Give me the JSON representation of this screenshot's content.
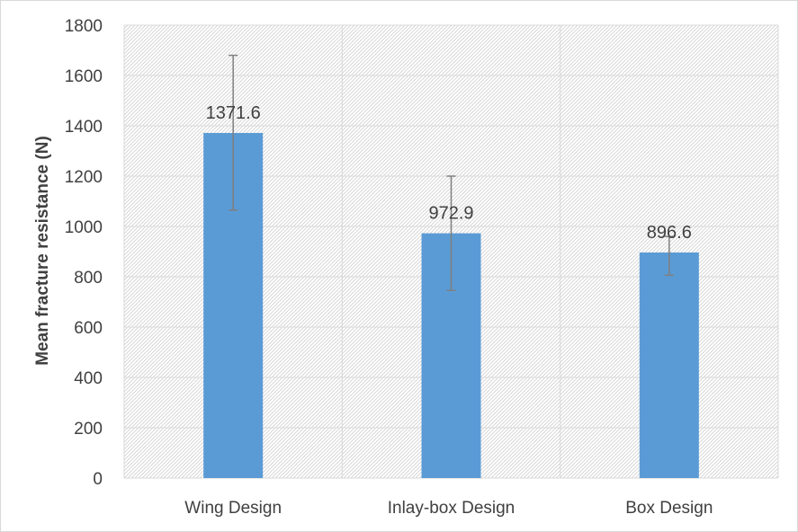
{
  "chart_data": {
    "type": "bar",
    "categories": [
      "Wing Design",
      "Inlay-box Design",
      "Box Design"
    ],
    "values": [
      1371.6,
      972.9,
      896.6
    ],
    "data_labels": [
      "1371.6",
      "972.9",
      "896.6"
    ],
    "error_bars": [
      {
        "low": 1065,
        "high": 1680
      },
      {
        "low": 746,
        "high": 1200
      },
      {
        "low": 806,
        "high": 960
      }
    ],
    "title": "",
    "xlabel": "",
    "ylabel": "Mean fracture resistance (N)",
    "ylim": [
      0,
      1800
    ],
    "yticks": [
      0,
      200,
      400,
      600,
      800,
      1000,
      1200,
      1400,
      1600,
      1800
    ],
    "grid": true,
    "bar_color": "#5b9bd5",
    "error_bar_color": "#7f7f7f",
    "plot_background": "hatched light gray"
  }
}
